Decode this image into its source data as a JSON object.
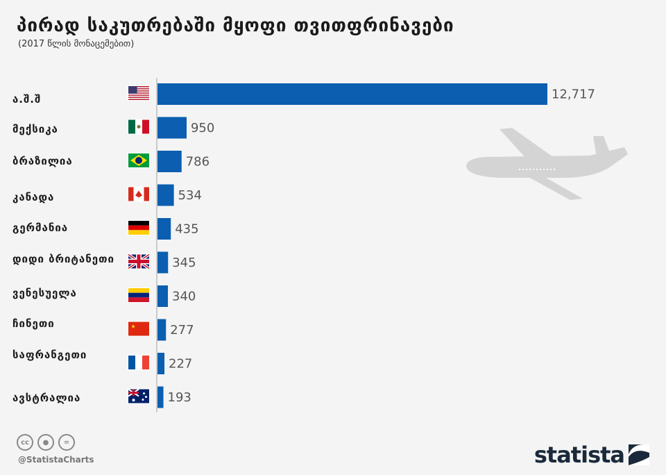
{
  "header": {
    "title": "პირად საკუთრებაში მყოფი თვითფრინავები",
    "subtitle": "(2017 წლის მონაცემებით)"
  },
  "chart_data": {
    "type": "bar",
    "orientation": "horizontal",
    "title": "პირად საკუთრებაში მყოფი თვითფრინავები",
    "subtitle": "(2017 წლის მონაცემებით)",
    "categories": [
      "ა.შ.შ",
      "მექსიკა",
      "ბრაზილია",
      "კანადა",
      "გერმანია",
      "დიდი ბრიტანეთი",
      "ვენესუელა",
      "ჩინეთი",
      "საფრანგეთი",
      "ავსტრალია"
    ],
    "values": [
      12717,
      950,
      786,
      534,
      435,
      345,
      340,
      277,
      227,
      193
    ],
    "value_labels": [
      "12,717",
      "950",
      "786",
      "534",
      "435",
      "345",
      "340",
      "277",
      "227",
      "193"
    ],
    "flags": [
      "us-flag-icon",
      "mexico-flag-icon",
      "brazil-flag-icon",
      "canada-flag-icon",
      "germany-flag-icon",
      "uk-flag-icon",
      "venezuela-flag-icon",
      "china-flag-icon",
      "france-flag-icon",
      "australia-flag-icon"
    ],
    "xlim": [
      0,
      12717
    ],
    "bar_color": "#0b5eb0",
    "grid": false
  },
  "decoration": {
    "icon": "airplane-icon",
    "color": "#d4d4d4"
  },
  "footer": {
    "icons": [
      "cc-icon",
      "by-icon",
      "nd-icon"
    ],
    "handle": "@StatistaCharts",
    "brand": "statista"
  }
}
